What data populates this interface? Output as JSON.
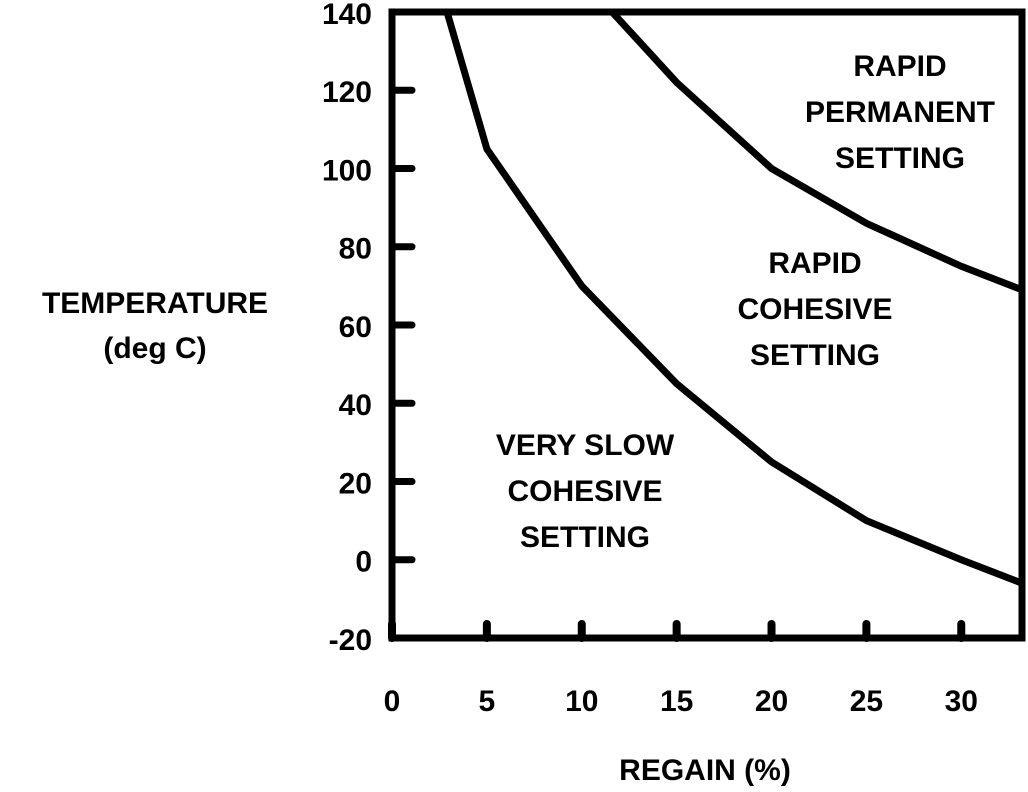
{
  "chart_data": {
    "type": "line",
    "xlabel": "REGAIN (%)",
    "ylabel": [
      "TEMPERATURE",
      "(deg C)"
    ],
    "xlim": [
      0,
      33.2
    ],
    "ylim": [
      -20,
      140
    ],
    "xticks": [
      0,
      5,
      10,
      15,
      20,
      25,
      30
    ],
    "yticks": [
      -20,
      0,
      20,
      40,
      60,
      80,
      100,
      120,
      140
    ],
    "series": [
      {
        "color": "#000000",
        "x": [
          2.9,
          5,
          10,
          15,
          20,
          25,
          30,
          33.2
        ],
        "values": [
          140,
          105,
          70,
          45,
          25,
          10,
          0,
          -6
        ]
      },
      {
        "color": "#000000",
        "x": [
          11.6,
          15,
          20,
          25,
          30,
          33.2
        ],
        "values": [
          140,
          122,
          100,
          86,
          75,
          69
        ]
      }
    ],
    "annotations": [
      [
        "RAPID",
        "PERMANENT",
        "SETTING"
      ],
      [
        "RAPID",
        "COHESIVE",
        "SETTING"
      ],
      [
        "VERY SLOW",
        "COHESIVE",
        "SETTING"
      ]
    ]
  }
}
